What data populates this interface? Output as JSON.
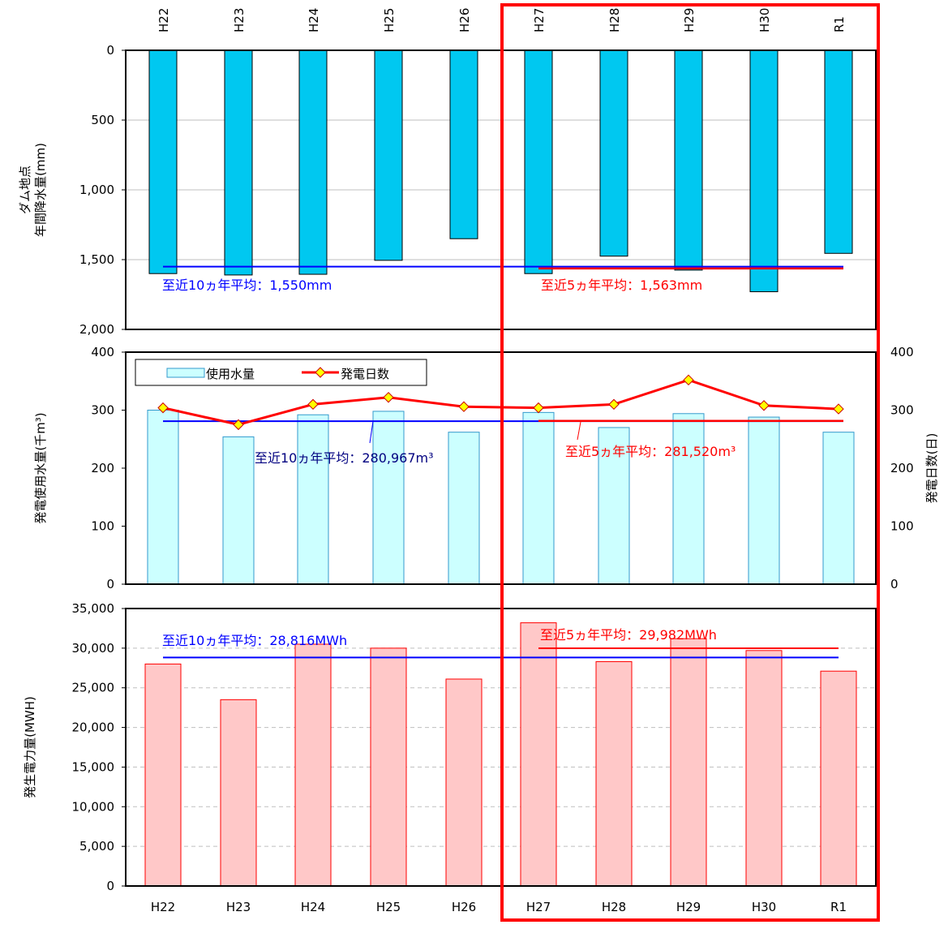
{
  "chart_data": [
    {
      "type": "bar",
      "categories": [
        "H22",
        "H23",
        "H24",
        "H25",
        "H26",
        "H27",
        "H28",
        "H29",
        "H30",
        "R1"
      ],
      "values": [
        1600,
        1610,
        1605,
        1505,
        1350,
        1600,
        1475,
        1575,
        1730,
        1455
      ],
      "ylabel_line1": "ダム地点",
      "ylabel_line2": "年間降水量(mm)",
      "ylim": [
        0,
        2000
      ],
      "yticks": [
        0,
        500,
        1000,
        1500,
        2000
      ],
      "ytick_labels": [
        "0",
        "500",
        "1,000",
        "1,500",
        "2,000"
      ],
      "y_inverted": true,
      "xaxis_position": "top",
      "bar_color": "#00c8f0",
      "avg10": {
        "value": 1550,
        "label": "至近10ヵ年平均：1,550mm",
        "color": "#0000ff"
      },
      "avg5": {
        "value": 1563,
        "label": "至近5ヵ年平均：1,563mm",
        "color": "#ff0000"
      }
    },
    {
      "type": "bar+line",
      "categories": [
        "H22",
        "H23",
        "H24",
        "H25",
        "H26",
        "H27",
        "H28",
        "H29",
        "H30",
        "R1"
      ],
      "series": [
        {
          "name": "使用水量",
          "type": "bar",
          "axis": "left",
          "color": "#ccffff",
          "values": [
            300,
            254,
            292,
            298,
            262,
            296,
            270,
            294,
            288,
            262
          ]
        },
        {
          "name": "発電日数",
          "type": "line",
          "axis": "right",
          "color": "#ff0000",
          "marker_color": "#ffff00",
          "values": [
            304,
            275,
            310,
            322,
            306,
            304,
            310,
            352,
            308,
            302
          ]
        }
      ],
      "ylabel_left": "発電使用水量(千m³)",
      "ylabel_right": "発電日数(日)",
      "ylim": [
        0,
        400
      ],
      "yticks": [
        0,
        100,
        200,
        300,
        400
      ],
      "ylim_right": [
        0,
        400
      ],
      "legend_position": "top-left",
      "avg10": {
        "value": 280.967,
        "label": "至近10ヵ年平均：280,967m³",
        "color": "#0000ff"
      },
      "avg5": {
        "value": 281.52,
        "label": "至近5ヵ年平均：281,520m³",
        "color": "#ff0000"
      }
    },
    {
      "type": "bar",
      "categories": [
        "H22",
        "H23",
        "H24",
        "H25",
        "H26",
        "H27",
        "H28",
        "H29",
        "H30",
        "R1"
      ],
      "values": [
        28000,
        23500,
        30500,
        30000,
        26100,
        33200,
        28300,
        31200,
        29700,
        27100
      ],
      "ylabel": "発生電力量(MWH)",
      "ylim": [
        0,
        35000
      ],
      "yticks": [
        0,
        5000,
        10000,
        15000,
        20000,
        25000,
        30000,
        35000
      ],
      "ytick_labels": [
        "0",
        "5,000",
        "10,000",
        "15,000",
        "20,000",
        "25,000",
        "30,000",
        "35,000"
      ],
      "grid": "dashed",
      "bar_color": "#ffc8c8",
      "bar_edge": "#ff0000",
      "avg10": {
        "value": 28816,
        "label": "至近10ヵ年平均：28,816MWh",
        "color": "#0000ff"
      },
      "avg5": {
        "value": 29982,
        "label": "至近5ヵ年平均：29,982MWh",
        "color": "#ff0000"
      }
    }
  ],
  "highlight": {
    "from_category": "H27",
    "to_category": "R1",
    "color": "#ff0000"
  }
}
